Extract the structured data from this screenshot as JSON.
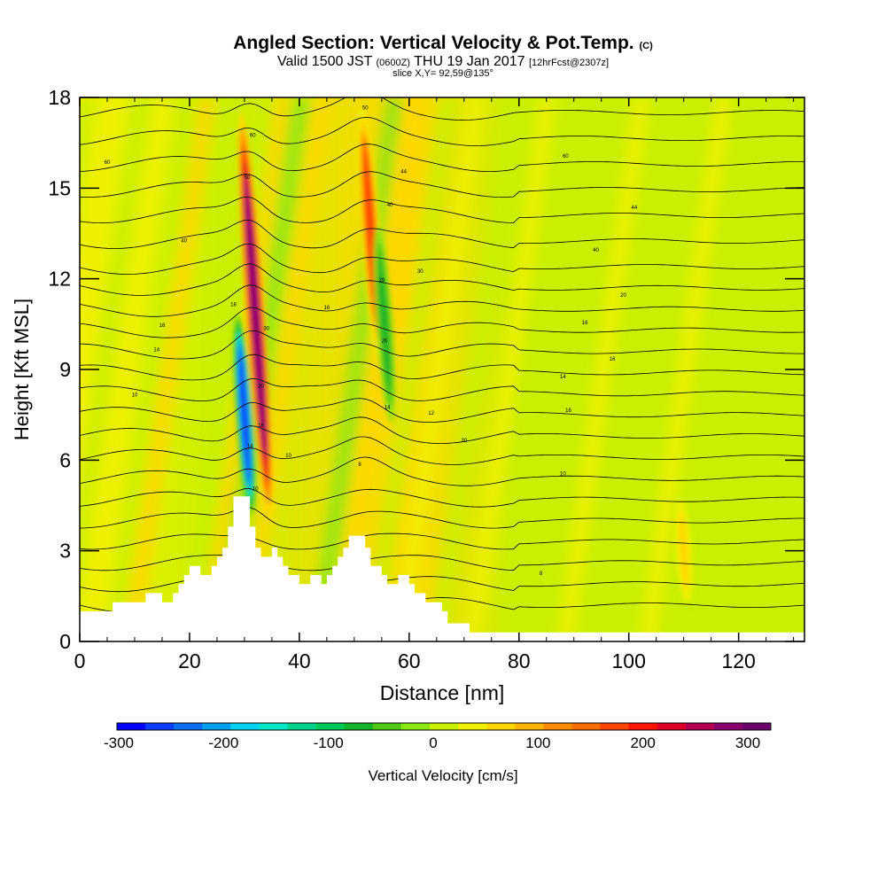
{
  "header": {
    "title": "Angled Section: Vertical Velocity & Pot.Temp.",
    "title_unit": "(C)",
    "valid_prefix": "Valid 1500 JST",
    "valid_utc": "(0600Z)",
    "valid_date": "THU 19 Jan 2017",
    "forecast": "[12hrFcst@2307z]",
    "slice": "slice X,Y= 92,59@135°"
  },
  "chart_data": {
    "type": "heatmap",
    "xlabel": "Distance [nm]",
    "ylabel": "Height [Kft MSL]",
    "xlim": [
      0,
      132
    ],
    "ylim": [
      0,
      18
    ],
    "x_ticks": [
      0,
      20,
      40,
      60,
      80,
      100,
      120
    ],
    "y_ticks": [
      0,
      3,
      6,
      9,
      12,
      15,
      18
    ],
    "colorbar": {
      "label": "Vertical Velocity [cm/s]",
      "range": [
        -300,
        300
      ],
      "ticks": [
        -300,
        -200,
        -100,
        0,
        100,
        200,
        300
      ],
      "colors": [
        "#0000ff",
        "#0a3cff",
        "#0a6cf0",
        "#00a0f0",
        "#00d2f0",
        "#00e6c8",
        "#00d28c",
        "#00c85a",
        "#14b428",
        "#50c814",
        "#8ce614",
        "#c8f000",
        "#f0f000",
        "#ffd700",
        "#ffb400",
        "#ff8c00",
        "#ff6e00",
        "#ff4600",
        "#ff1400",
        "#dc0028",
        "#b40050",
        "#8c006e",
        "#6e006e"
      ]
    },
    "terrain_profile": [
      [
        0,
        1
      ],
      [
        6,
        1
      ],
      [
        6,
        1.3
      ],
      [
        12,
        1.3
      ],
      [
        12,
        1.6
      ],
      [
        15,
        1.6
      ],
      [
        15,
        1.3
      ],
      [
        17,
        1.3
      ],
      [
        17,
        1.6
      ],
      [
        18,
        1.6
      ],
      [
        18,
        1.9
      ],
      [
        19,
        1.9
      ],
      [
        19,
        2.2
      ],
      [
        20,
        2.2
      ],
      [
        20,
        2.5
      ],
      [
        22,
        2.5
      ],
      [
        22,
        2.2
      ],
      [
        24,
        2.2
      ],
      [
        24,
        2.5
      ],
      [
        25,
        2.5
      ],
      [
        25,
        2.8
      ],
      [
        26,
        2.8
      ],
      [
        26,
        3.1
      ],
      [
        27,
        3.1
      ],
      [
        27,
        3.8
      ],
      [
        28,
        3.8
      ],
      [
        28,
        4.8
      ],
      [
        31,
        4.8
      ],
      [
        31,
        3.8
      ],
      [
        32,
        3.8
      ],
      [
        32,
        3.1
      ],
      [
        33,
        3.1
      ],
      [
        33,
        2.8
      ],
      [
        35,
        2.8
      ],
      [
        35,
        3.1
      ],
      [
        36,
        3.1
      ],
      [
        36,
        2.8
      ],
      [
        37,
        2.8
      ],
      [
        37,
        2.5
      ],
      [
        38,
        2.5
      ],
      [
        38,
        2.2
      ],
      [
        40,
        2.2
      ],
      [
        40,
        1.9
      ],
      [
        42,
        1.9
      ],
      [
        42,
        2.2
      ],
      [
        44,
        2.2
      ],
      [
        44,
        1.9
      ],
      [
        45,
        1.9
      ],
      [
        45,
        2.2
      ],
      [
        46,
        2.2
      ],
      [
        46,
        2.5
      ],
      [
        47,
        2.5
      ],
      [
        47,
        2.8
      ],
      [
        48,
        2.8
      ],
      [
        48,
        3.1
      ],
      [
        49,
        3.1
      ],
      [
        49,
        3.5
      ],
      [
        52,
        3.5
      ],
      [
        52,
        3.1
      ],
      [
        53,
        3.1
      ],
      [
        53,
        2.5
      ],
      [
        55,
        2.5
      ],
      [
        55,
        2.2
      ],
      [
        56,
        2.2
      ],
      [
        56,
        1.9
      ],
      [
        58,
        1.9
      ],
      [
        58,
        2.2
      ],
      [
        60,
        2.2
      ],
      [
        60,
        1.9
      ],
      [
        61,
        1.9
      ],
      [
        61,
        1.6
      ],
      [
        63,
        1.6
      ],
      [
        63,
        1.3
      ],
      [
        66,
        1.3
      ],
      [
        66,
        1
      ],
      [
        67,
        1
      ],
      [
        67,
        0.6
      ],
      [
        71,
        0.6
      ],
      [
        71,
        0.3
      ],
      [
        132,
        0.3
      ]
    ],
    "features": [
      {
        "kind": "updraft",
        "x": 32,
        "y_bottom": 3.5,
        "y_top": 18,
        "peak": 250
      },
      {
        "kind": "downdraft",
        "x": 30,
        "y_bottom": 4,
        "y_top": 11,
        "peak": -260
      },
      {
        "kind": "updraft",
        "x": 53,
        "y_bottom": 9,
        "y_top": 18,
        "peak": 150
      },
      {
        "kind": "downdraft",
        "x": 55.5,
        "y_bottom": 7,
        "y_top": 14,
        "peak": -80
      },
      {
        "kind": "updraft",
        "x": 110,
        "y_bottom": 1,
        "y_top": 5,
        "peak": 40
      }
    ],
    "contour_labels": [
      {
        "x": 5,
        "y": 15.8,
        "text": "60"
      },
      {
        "x": 19,
        "y": 13.2,
        "text": "40"
      },
      {
        "x": 10,
        "y": 8.1,
        "text": "10"
      },
      {
        "x": 15,
        "y": 10.4,
        "text": "16"
      },
      {
        "x": 14,
        "y": 9.6,
        "text": "14"
      },
      {
        "x": 28,
        "y": 11.1,
        "text": "18"
      },
      {
        "x": 31.5,
        "y": 16.7,
        "text": "60"
      },
      {
        "x": 30.5,
        "y": 15.3,
        "text": "50"
      },
      {
        "x": 34,
        "y": 10.3,
        "text": "30"
      },
      {
        "x": 33,
        "y": 8.4,
        "text": "20"
      },
      {
        "x": 33,
        "y": 7.1,
        "text": "16"
      },
      {
        "x": 31,
        "y": 6.4,
        "text": "14"
      },
      {
        "x": 32,
        "y": 5.0,
        "text": "10"
      },
      {
        "x": 38,
        "y": 6.1,
        "text": "10"
      },
      {
        "x": 45,
        "y": 11.0,
        "text": "16"
      },
      {
        "x": 52,
        "y": 17.6,
        "text": "50"
      },
      {
        "x": 59,
        "y": 15.5,
        "text": "44"
      },
      {
        "x": 56.5,
        "y": 14.4,
        "text": "40"
      },
      {
        "x": 62,
        "y": 12.2,
        "text": "30"
      },
      {
        "x": 55,
        "y": 11.9,
        "text": "28"
      },
      {
        "x": 55.5,
        "y": 9.9,
        "text": "20"
      },
      {
        "x": 56,
        "y": 7.7,
        "text": "14"
      },
      {
        "x": 51,
        "y": 5.8,
        "text": "8"
      },
      {
        "x": 64,
        "y": 7.5,
        "text": "12"
      },
      {
        "x": 70,
        "y": 6.6,
        "text": "30"
      },
      {
        "x": 88.5,
        "y": 16.0,
        "text": "60"
      },
      {
        "x": 101,
        "y": 14.3,
        "text": "44"
      },
      {
        "x": 94,
        "y": 12.9,
        "text": "40"
      },
      {
        "x": 99,
        "y": 11.4,
        "text": "20"
      },
      {
        "x": 92,
        "y": 10.5,
        "text": "16"
      },
      {
        "x": 97,
        "y": 9.3,
        "text": "16"
      },
      {
        "x": 88,
        "y": 8.7,
        "text": "14"
      },
      {
        "x": 89,
        "y": 7.6,
        "text": "16"
      },
      {
        "x": 88,
        "y": 5.5,
        "text": "10"
      },
      {
        "x": 84,
        "y": 2.2,
        "text": "8"
      }
    ]
  }
}
